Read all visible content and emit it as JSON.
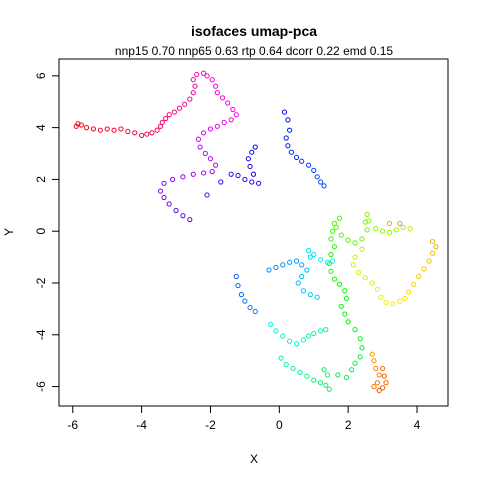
{
  "chart_data": {
    "type": "scatter",
    "title": "isofaces umap-pca",
    "subtitle": "nnp15 0.70 nnp65 0.63 rtp 0.64 dcorr 0.22 emd 0.15",
    "xlabel": "X",
    "ylabel": "Y",
    "xlim": [
      -6.4,
      4.9
    ],
    "ylim": [
      -6.75,
      6.65
    ],
    "xticks": [
      -6,
      -4,
      -2,
      0,
      2,
      4
    ],
    "yticks": [
      -6,
      -4,
      -2,
      0,
      2,
      4,
      6
    ],
    "grid": false,
    "legend": "none",
    "color_scale": "rainbow (hue by point index)",
    "marker": "open circle",
    "points_path": [
      [
        -5.9,
        4.05
      ],
      [
        -5.85,
        4.15
      ],
      [
        -5.75,
        4.1
      ],
      [
        -5.6,
        4.0
      ],
      [
        -5.4,
        3.95
      ],
      [
        -5.2,
        3.9
      ],
      [
        -5.0,
        3.95
      ],
      [
        -4.8,
        3.9
      ],
      [
        -4.6,
        3.95
      ],
      [
        -4.4,
        3.85
      ],
      [
        -4.2,
        3.8
      ],
      [
        -4.0,
        3.7
      ],
      [
        -3.85,
        3.75
      ],
      [
        -3.7,
        3.8
      ],
      [
        -3.55,
        3.9
      ],
      [
        -3.45,
        4.05
      ],
      [
        -3.4,
        4.2
      ],
      [
        -3.3,
        4.35
      ],
      [
        -3.2,
        4.5
      ],
      [
        -3.05,
        4.6
      ],
      [
        -2.9,
        4.75
      ],
      [
        -2.75,
        4.9
      ],
      [
        -2.6,
        5.1
      ],
      [
        -2.5,
        5.35
      ],
      [
        -2.45,
        5.6
      ],
      [
        -2.5,
        5.85
      ],
      [
        -2.4,
        6.05
      ],
      [
        -2.2,
        6.1
      ],
      [
        -2.1,
        6.0
      ],
      [
        -1.95,
        5.85
      ],
      [
        -1.85,
        5.6
      ],
      [
        -1.8,
        5.35
      ],
      [
        -1.65,
        5.15
      ],
      [
        -1.5,
        4.95
      ],
      [
        -1.35,
        4.7
      ],
      [
        -1.25,
        4.5
      ],
      [
        -1.4,
        4.3
      ],
      [
        -1.6,
        4.2
      ],
      [
        -1.8,
        4.05
      ],
      [
        -2.0,
        3.95
      ],
      [
        -2.2,
        3.8
      ],
      [
        -2.35,
        3.55
      ],
      [
        -2.3,
        3.25
      ],
      [
        -2.15,
        3.0
      ],
      [
        -2.0,
        2.8
      ],
      [
        -1.85,
        2.55
      ],
      [
        -1.95,
        2.3
      ],
      [
        -2.2,
        2.25
      ],
      [
        -2.5,
        2.2
      ],
      [
        -2.8,
        2.1
      ],
      [
        -3.1,
        2.0
      ],
      [
        -3.35,
        1.85
      ],
      [
        -3.45,
        1.55
      ],
      [
        -3.35,
        1.3
      ],
      [
        -3.2,
        1.05
      ],
      [
        -3.0,
        0.8
      ],
      [
        -2.8,
        0.6
      ],
      [
        -2.6,
        0.45
      ],
      [
        -2.1,
        1.4
      ],
      [
        -1.7,
        1.9
      ],
      [
        -1.4,
        2.2
      ],
      [
        -1.2,
        2.15
      ],
      [
        -1.0,
        2.0
      ],
      [
        -0.8,
        1.9
      ],
      [
        -0.6,
        1.85
      ],
      [
        -0.75,
        2.2
      ],
      [
        -0.85,
        2.5
      ],
      [
        -0.9,
        2.8
      ],
      [
        -0.8,
        3.05
      ],
      [
        -0.7,
        3.25
      ],
      [
        0.15,
        4.6
      ],
      [
        0.25,
        4.3
      ],
      [
        0.3,
        3.9
      ],
      [
        0.2,
        3.6
      ],
      [
        0.25,
        3.3
      ],
      [
        0.35,
        3.05
      ],
      [
        0.5,
        2.85
      ],
      [
        0.65,
        2.7
      ],
      [
        0.85,
        2.55
      ],
      [
        1.0,
        2.35
      ],
      [
        1.1,
        2.1
      ],
      [
        1.2,
        1.9
      ],
      [
        1.3,
        1.75
      ],
      [
        -1.25,
        -1.75
      ],
      [
        -1.2,
        -2.1
      ],
      [
        -1.1,
        -2.45
      ],
      [
        -1.0,
        -2.7
      ],
      [
        -0.85,
        -2.95
      ],
      [
        -0.7,
        -3.1
      ],
      [
        -0.3,
        -1.5
      ],
      [
        -0.1,
        -1.4
      ],
      [
        0.1,
        -1.3
      ],
      [
        0.3,
        -1.2
      ],
      [
        0.5,
        -1.15
      ],
      [
        0.65,
        -1.3
      ],
      [
        0.8,
        -1.5
      ],
      [
        0.65,
        -1.75
      ],
      [
        0.55,
        -2.0
      ],
      [
        0.7,
        -2.3
      ],
      [
        0.9,
        -2.45
      ],
      [
        1.1,
        -2.55
      ],
      [
        0.9,
        -1.0
      ],
      [
        0.85,
        -0.75
      ],
      [
        1.0,
        -0.9
      ],
      [
        1.2,
        -1.1
      ],
      [
        1.4,
        -1.2
      ],
      [
        1.55,
        -1.15
      ],
      [
        -0.25,
        -3.6
      ],
      [
        -0.1,
        -3.85
      ],
      [
        0.1,
        -4.05
      ],
      [
        0.3,
        -4.25
      ],
      [
        0.5,
        -4.35
      ],
      [
        0.7,
        -4.2
      ],
      [
        0.85,
        -4.05
      ],
      [
        1.0,
        -3.95
      ],
      [
        1.2,
        -3.85
      ],
      [
        1.35,
        -3.8
      ],
      [
        0.05,
        -4.9
      ],
      [
        0.2,
        -5.15
      ],
      [
        0.4,
        -5.3
      ],
      [
        0.6,
        -5.45
      ],
      [
        0.8,
        -5.6
      ],
      [
        1.0,
        -5.75
      ],
      [
        1.2,
        -5.85
      ],
      [
        1.35,
        -5.95
      ],
      [
        1.45,
        -6.1
      ],
      [
        1.4,
        -5.55
      ],
      [
        1.3,
        -5.35
      ],
      [
        1.7,
        -5.55
      ],
      [
        1.95,
        -5.65
      ],
      [
        2.1,
        -5.35
      ],
      [
        2.2,
        -5.1
      ],
      [
        2.35,
        -4.85
      ],
      [
        2.4,
        -4.5
      ],
      [
        2.35,
        -4.15
      ],
      [
        2.2,
        -3.8
      ],
      [
        2.0,
        -3.5
      ],
      [
        1.9,
        -3.2
      ],
      [
        1.8,
        -2.9
      ],
      [
        1.95,
        -2.6
      ],
      [
        1.9,
        -2.3
      ],
      [
        1.75,
        -2.05
      ],
      [
        1.6,
        -1.85
      ],
      [
        1.5,
        -1.55
      ],
      [
        1.45,
        -1.25
      ],
      [
        1.5,
        -0.9
      ],
      [
        1.6,
        -0.6
      ],
      [
        1.5,
        -0.3
      ],
      [
        1.55,
        0.0
      ],
      [
        1.6,
        0.3
      ],
      [
        1.75,
        0.5
      ],
      [
        1.65,
        0.15
      ],
      [
        1.8,
        -0.15
      ],
      [
        2.0,
        -0.35
      ],
      [
        2.2,
        -0.45
      ],
      [
        2.4,
        -0.3
      ],
      [
        2.55,
        0.05
      ],
      [
        2.5,
        0.35
      ],
      [
        2.55,
        0.65
      ],
      [
        2.6,
        0.4
      ],
      [
        2.8,
        0.1
      ],
      [
        3.0,
        0.0
      ],
      [
        3.2,
        -0.05
      ],
      [
        3.4,
        0.05
      ],
      [
        3.6,
        0.15
      ],
      [
        3.8,
        0.1
      ],
      [
        2.4,
        -0.7
      ],
      [
        2.2,
        -1.0
      ],
      [
        2.15,
        -1.3
      ],
      [
        2.3,
        -1.6
      ],
      [
        2.5,
        -1.8
      ],
      [
        2.7,
        -2.0
      ],
      [
        2.85,
        -2.25
      ],
      [
        2.95,
        -2.55
      ],
      [
        3.1,
        -2.75
      ],
      [
        3.3,
        -2.8
      ],
      [
        3.5,
        -2.7
      ],
      [
        3.65,
        -2.6
      ],
      [
        3.75,
        -2.35
      ],
      [
        3.9,
        -2.05
      ],
      [
        4.05,
        -1.75
      ],
      [
        4.2,
        -1.45
      ],
      [
        4.35,
        -1.15
      ],
      [
        4.45,
        -0.85
      ],
      [
        4.55,
        -0.6
      ],
      [
        4.45,
        -0.4
      ],
      [
        3.2,
        0.3
      ],
      [
        3.5,
        0.3
      ],
      [
        2.7,
        -4.75
      ],
      [
        2.75,
        -5.0
      ],
      [
        2.8,
        -5.3
      ],
      [
        2.9,
        -5.55
      ],
      [
        2.85,
        -5.85
      ],
      [
        2.75,
        -6.0
      ],
      [
        3.0,
        -5.3
      ],
      [
        3.05,
        -5.6
      ],
      [
        3.1,
        -5.85
      ],
      [
        3.0,
        -6.05
      ],
      [
        2.9,
        -6.15
      ]
    ]
  }
}
